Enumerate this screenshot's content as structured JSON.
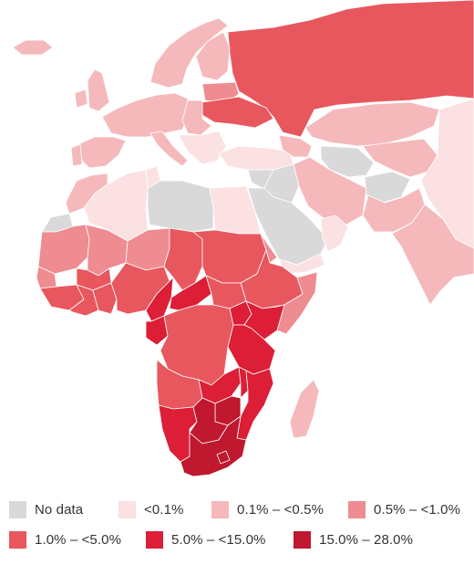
{
  "map": {
    "region": "Europe, Africa, Middle East and South Asia",
    "background_color": "#ffffff",
    "border_color": "#ffffff"
  },
  "legend": {
    "items": [
      {
        "key": "no-data",
        "label": "No data",
        "color": "#d9d9d9"
      },
      {
        "key": "lt-0-1",
        "label": "<0.1%",
        "color": "#fbe1e1"
      },
      {
        "key": "0-1-to-0-5",
        "label": "0.1% – <0.5%",
        "color": "#f5b9bb"
      },
      {
        "key": "0-5-to-1-0",
        "label": "0.5% – <1.0%",
        "color": "#ee8c91"
      },
      {
        "key": "1-0-to-5-0",
        "label": "1.0% – <5.0%",
        "color": "#e8575e"
      },
      {
        "key": "5-0-to-15-0",
        "label": "5.0% – <15.0%",
        "color": "#dc1e36"
      },
      {
        "key": "15-0-to-28-0",
        "label": "15.0% – 28.0%",
        "color": "#c0182e"
      }
    ]
  },
  "regions": [
    {
      "name": "Russia",
      "class": "1-0-to-5-0"
    },
    {
      "name": "Belarus",
      "class": "0-5-to-1-0"
    },
    {
      "name": "Ukraine",
      "class": "1-0-to-5-0"
    },
    {
      "name": "Scandinavia",
      "class": "0-1-to-0-5"
    },
    {
      "name": "Finland",
      "class": "0-1-to-0-5"
    },
    {
      "name": "Iceland",
      "class": "0-1-to-0-5"
    },
    {
      "name": "United Kingdom",
      "class": "0-1-to-0-5"
    },
    {
      "name": "Ireland",
      "class": "0-1-to-0-5"
    },
    {
      "name": "Western Europe",
      "class": "0-1-to-0-5"
    },
    {
      "name": "Spain",
      "class": "0-1-to-0-5"
    },
    {
      "name": "Portugal",
      "class": "0-1-to-0-5"
    },
    {
      "name": "Italy",
      "class": "0-1-to-0-5"
    },
    {
      "name": "Eastern Europe",
      "class": "0-1-to-0-5"
    },
    {
      "name": "Balkans",
      "class": "lt-0-1"
    },
    {
      "name": "Turkey",
      "class": "lt-0-1"
    },
    {
      "name": "Kazakhstan",
      "class": "0-1-to-0-5"
    },
    {
      "name": "Central Asia",
      "class": "0-1-to-0-5"
    },
    {
      "name": "Turkmenistan",
      "class": "no-data"
    },
    {
      "name": "Caucasus",
      "class": "0-1-to-0-5"
    },
    {
      "name": "Iran",
      "class": "0-1-to-0-5"
    },
    {
      "name": "Afghanistan",
      "class": "no-data"
    },
    {
      "name": "Pakistan",
      "class": "0-1-to-0-5"
    },
    {
      "name": "India",
      "class": "0-1-to-0-5"
    },
    {
      "name": "China",
      "class": "lt-0-1"
    },
    {
      "name": "Iraq",
      "class": "no-data"
    },
    {
      "name": "Syria",
      "class": "no-data"
    },
    {
      "name": "Saudi Arabia",
      "class": "no-data"
    },
    {
      "name": "Yemen",
      "class": "lt-0-1"
    },
    {
      "name": "Oman",
      "class": "lt-0-1"
    },
    {
      "name": "Egypt",
      "class": "lt-0-1"
    },
    {
      "name": "Libya",
      "class": "no-data"
    },
    {
      "name": "Algeria",
      "class": "lt-0-1"
    },
    {
      "name": "Tunisia",
      "class": "lt-0-1"
    },
    {
      "name": "Morocco",
      "class": "0-1-to-0-5"
    },
    {
      "name": "Western Sahara",
      "class": "no-data"
    },
    {
      "name": "Mauritania",
      "class": "0-5-to-1-0"
    },
    {
      "name": "Mali",
      "class": "0-5-to-1-0"
    },
    {
      "name": "Niger",
      "class": "0-5-to-1-0"
    },
    {
      "name": "Chad",
      "class": "1-0-to-5-0"
    },
    {
      "name": "Sudan",
      "class": "1-0-to-5-0"
    },
    {
      "name": "Eritrea",
      "class": "0-5-to-1-0"
    },
    {
      "name": "Ethiopia",
      "class": "1-0-to-5-0"
    },
    {
      "name": "Somalia",
      "class": "0-5-to-1-0"
    },
    {
      "name": "Senegal",
      "class": "0-5-to-1-0"
    },
    {
      "name": "Guinea",
      "class": "1-0-to-5-0"
    },
    {
      "name": "Burkina Faso",
      "class": "1-0-to-5-0"
    },
    {
      "name": "Ivory Coast",
      "class": "1-0-to-5-0"
    },
    {
      "name": "Ghana",
      "class": "1-0-to-5-0"
    },
    {
      "name": "Nigeria",
      "class": "1-0-to-5-0"
    },
    {
      "name": "Cameroon",
      "class": "5-0-to-15-0"
    },
    {
      "name": "Gabon",
      "class": "5-0-to-15-0"
    },
    {
      "name": "Central African Republic",
      "class": "5-0-to-15-0"
    },
    {
      "name": "South Sudan",
      "class": "1-0-to-5-0"
    },
    {
      "name": "DR Congo",
      "class": "1-0-to-5-0"
    },
    {
      "name": "Uganda",
      "class": "5-0-to-15-0"
    },
    {
      "name": "Kenya",
      "class": "5-0-to-15-0"
    },
    {
      "name": "Tanzania",
      "class": "5-0-to-15-0"
    },
    {
      "name": "Angola",
      "class": "1-0-to-5-0"
    },
    {
      "name": "Zambia",
      "class": "5-0-to-15-0"
    },
    {
      "name": "Malawi",
      "class": "5-0-to-15-0"
    },
    {
      "name": "Mozambique",
      "class": "5-0-to-15-0"
    },
    {
      "name": "Zimbabwe",
      "class": "15-0-to-28-0"
    },
    {
      "name": "Namibia",
      "class": "5-0-to-15-0"
    },
    {
      "name": "Botswana",
      "class": "15-0-to-28-0"
    },
    {
      "name": "South Africa",
      "class": "15-0-to-28-0"
    },
    {
      "name": "Lesotho",
      "class": "15-0-to-28-0"
    },
    {
      "name": "Madagascar",
      "class": "0-1-to-0-5"
    }
  ]
}
